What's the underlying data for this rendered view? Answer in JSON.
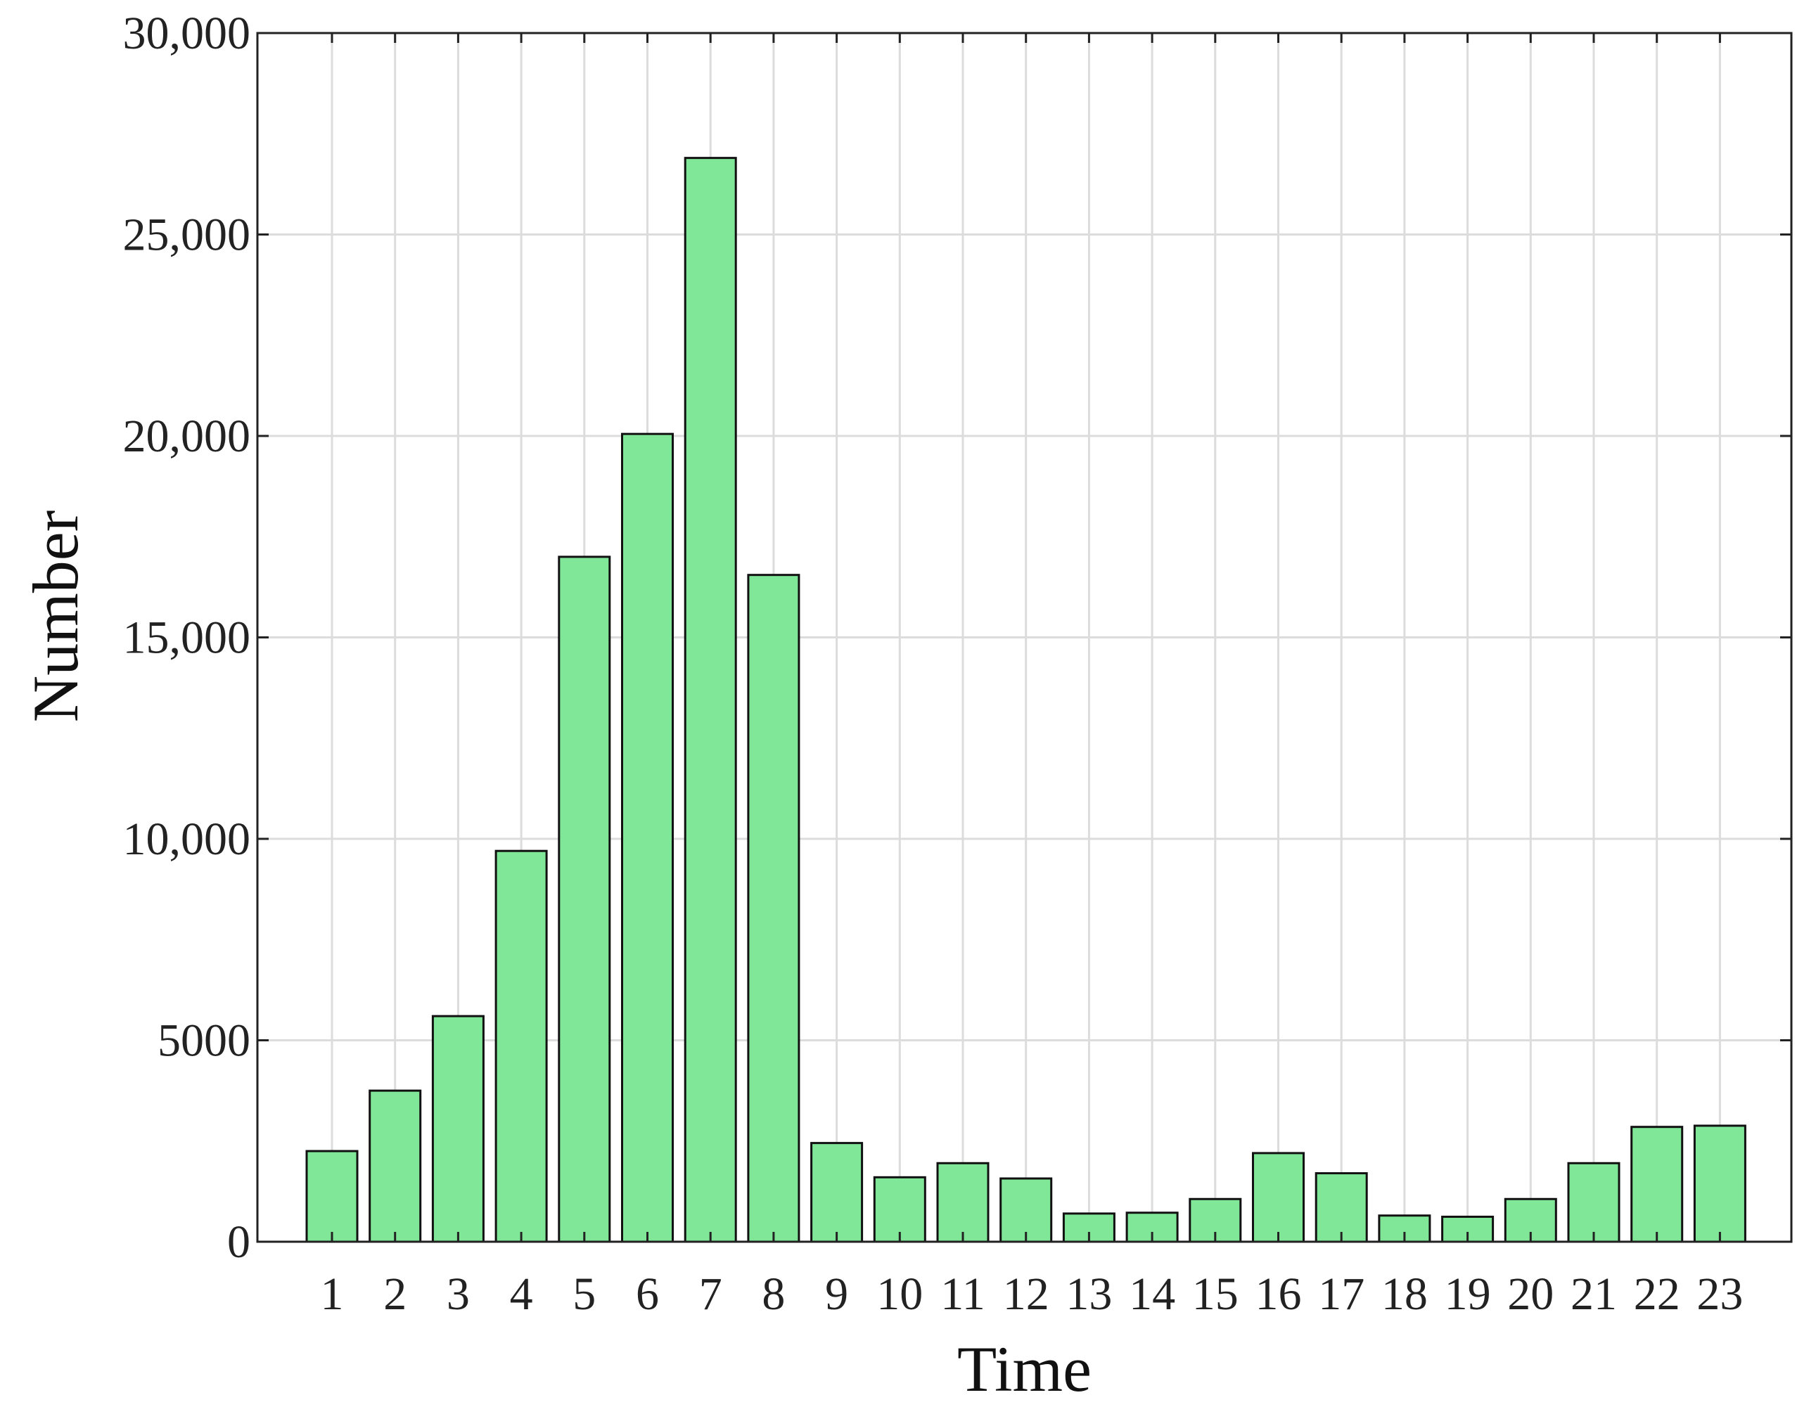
{
  "chart_data": {
    "type": "bar",
    "title": "",
    "xlabel": "Time",
    "ylabel": "Number",
    "categories": [
      "1",
      "2",
      "3",
      "4",
      "5",
      "6",
      "7",
      "8",
      "9",
      "10",
      "11",
      "12",
      "13",
      "14",
      "15",
      "16",
      "17",
      "18",
      "19",
      "20",
      "21",
      "22",
      "23"
    ],
    "values": [
      2250,
      3750,
      5600,
      9700,
      17000,
      20050,
      26900,
      16550,
      2450,
      1600,
      1950,
      1570,
      700,
      720,
      1060,
      2200,
      1700,
      650,
      620,
      1060,
      1950,
      2850,
      2880
    ],
    "ylim": [
      0,
      30000
    ],
    "yticks": [
      0,
      5000,
      10000,
      15000,
      20000,
      25000,
      30000
    ],
    "ytick_labels": [
      "0",
      "5000",
      "10,000",
      "15,000",
      "20,000",
      "25,000",
      "30,000"
    ],
    "grid": true,
    "bar_color": "#80e698",
    "bar_edge_color": "#111111",
    "grid_color": "#dcdcdc"
  }
}
